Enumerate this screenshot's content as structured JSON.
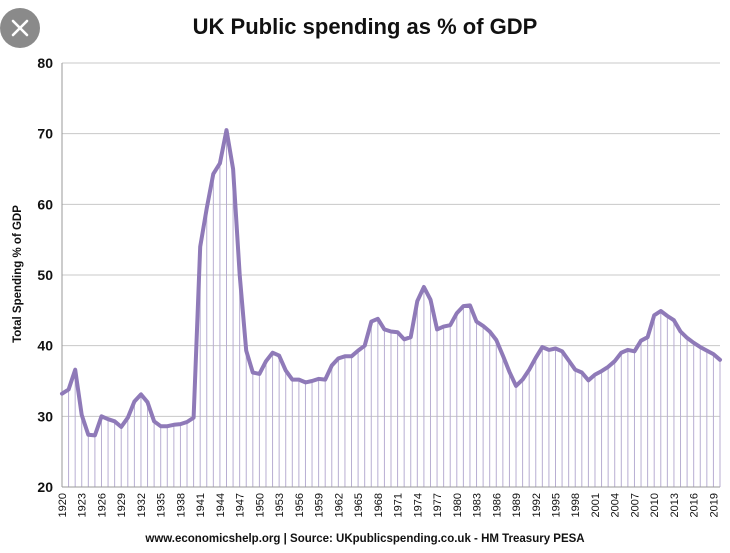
{
  "ui": {
    "close_icon": "close-icon"
  },
  "chart_data": {
    "type": "line",
    "title": "UK Public spending as % of GDP",
    "xlabel": "",
    "ylabel": "Total Spending % of GDP",
    "ylim": [
      20,
      80
    ],
    "yticks": [
      20,
      30,
      40,
      50,
      60,
      70,
      80
    ],
    "xlim": [
      1920,
      2020
    ],
    "xtick_labels": [
      "1920",
      "1923",
      "1926",
      "1929",
      "1932",
      "1935",
      "1938",
      "1941",
      "1944",
      "1947",
      "1950",
      "1953",
      "1956",
      "1959",
      "1962",
      "1965",
      "1968",
      "1971",
      "1974",
      "1977",
      "1980",
      "1983",
      "1986",
      "1989",
      "1992",
      "1995",
      "1998",
      "2001",
      "2004",
      "2007",
      "2010",
      "2013",
      "2016",
      "2019"
    ],
    "grid": true,
    "line_color": "#8f7ab8",
    "drop_line_color": "#b8aed2",
    "source": "www.economicshelp.org | Source: UKpublicspending.co.uk - HM Treasury PESA",
    "x": [
      1920,
      1921,
      1922,
      1923,
      1924,
      1925,
      1926,
      1927,
      1928,
      1929,
      1930,
      1931,
      1932,
      1933,
      1934,
      1935,
      1936,
      1937,
      1938,
      1939,
      1940,
      1941,
      1942,
      1943,
      1944,
      1945,
      1946,
      1947,
      1948,
      1949,
      1950,
      1951,
      1952,
      1953,
      1954,
      1955,
      1956,
      1957,
      1958,
      1959,
      1960,
      1961,
      1962,
      1963,
      1964,
      1965,
      1966,
      1967,
      1968,
      1969,
      1970,
      1971,
      1972,
      1973,
      1974,
      1975,
      1976,
      1977,
      1978,
      1979,
      1980,
      1981,
      1982,
      1983,
      1984,
      1985,
      1986,
      1987,
      1988,
      1989,
      1990,
      1991,
      1992,
      1993,
      1994,
      1995,
      1996,
      1997,
      1998,
      1999,
      2000,
      2001,
      2002,
      2003,
      2004,
      2005,
      2006,
      2007,
      2008,
      2009,
      2010,
      2011,
      2012,
      2013,
      2014,
      2015,
      2016,
      2017,
      2018,
      2019,
      2020
    ],
    "values": [
      33.2,
      33.8,
      36.6,
      30.2,
      27.4,
      27.3,
      30.0,
      29.6,
      29.3,
      28.5,
      29.8,
      32.1,
      33.1,
      32.0,
      29.3,
      28.6,
      28.6,
      28.8,
      28.9,
      29.2,
      29.8,
      54.0,
      59.5,
      64.3,
      65.8,
      70.5,
      65.0,
      50.0,
      39.3,
      36.2,
      36.0,
      37.8,
      39.0,
      38.6,
      36.5,
      35.2,
      35.2,
      34.8,
      35.0,
      35.3,
      35.2,
      37.2,
      38.2,
      38.5,
      38.5,
      39.3,
      40.0,
      43.4,
      43.8,
      42.3,
      42.0,
      41.9,
      40.9,
      41.2,
      46.3,
      48.3,
      46.5,
      42.3,
      42.7,
      42.9,
      44.6,
      45.6,
      45.7,
      43.4,
      42.8,
      42.0,
      40.8,
      38.6,
      36.3,
      34.3,
      35.2,
      36.6,
      38.3,
      39.8,
      39.4,
      39.6,
      39.2,
      37.9,
      36.6,
      36.2,
      35.1,
      35.9,
      36.4,
      37.0,
      37.8,
      39.0,
      39.4,
      39.2,
      40.7,
      41.2,
      44.3,
      44.9,
      44.2,
      43.6,
      42.0,
      41.1,
      40.4,
      39.8,
      39.3,
      38.8,
      38.0
    ]
  }
}
